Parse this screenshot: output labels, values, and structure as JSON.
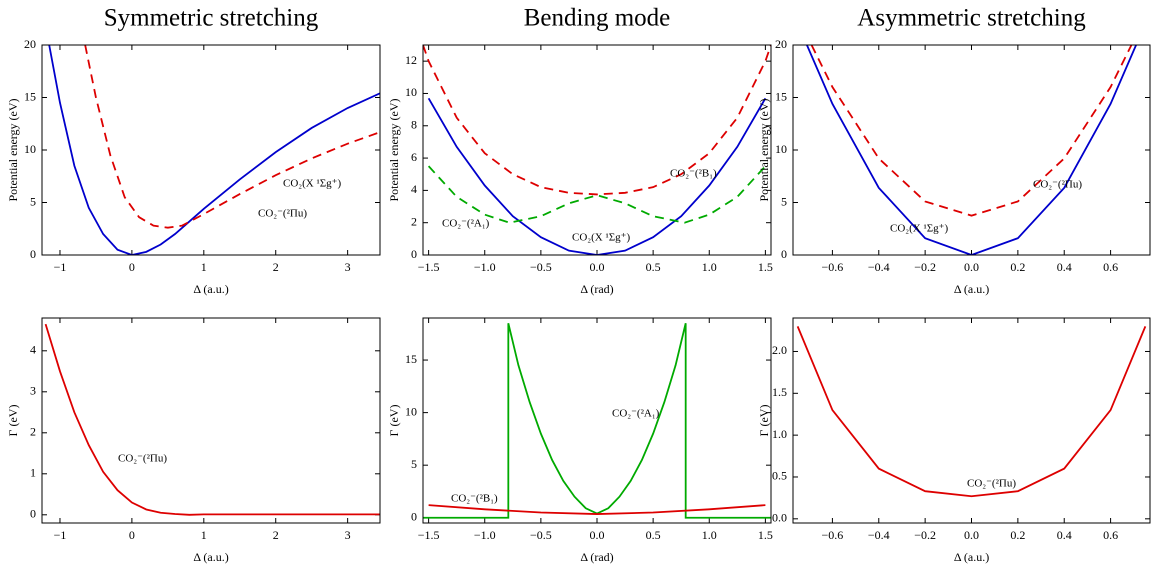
{
  "chart_data": [
    {
      "type": "line",
      "title": "Symmetric stretching",
      "xlabel": "Δ (a.u.)",
      "ylabel": "Potential energy (eV)",
      "xlim": [
        -1.25,
        3.45
      ],
      "ylim": [
        0,
        20
      ],
      "xticks": [
        {
          "value": -1,
          "label": "−1"
        },
        0,
        1,
        2,
        3
      ],
      "yticks": [
        0,
        5,
        10,
        15,
        20
      ],
      "series": [
        {
          "color": "#0000cc",
          "linestyle": "solid",
          "x": [
            -1.15,
            -1.0,
            -0.8,
            -0.6,
            -0.4,
            -0.2,
            0,
            0.2,
            0.4,
            0.6,
            0.8,
            1.0,
            1.5,
            2.0,
            2.5,
            3.0,
            3.45
          ],
          "values": [
            20,
            14.5,
            8.5,
            4.5,
            2,
            0.5,
            0,
            0.3,
            1.0,
            2.0,
            3.2,
            4.4,
            7.2,
            9.8,
            12.1,
            14.0,
            15.4
          ]
        },
        {
          "color": "#dd0000",
          "linestyle": "dashed",
          "x": [
            -0.65,
            -0.5,
            -0.3,
            -0.1,
            0.1,
            0.3,
            0.5,
            0.7,
            1.0,
            1.5,
            2.0,
            2.5,
            3.0,
            3.45
          ],
          "values": [
            20,
            15,
            9.5,
            5.5,
            3.6,
            2.8,
            2.6,
            2.8,
            3.9,
            5.8,
            7.6,
            9.2,
            10.6,
            11.7
          ]
        }
      ],
      "annotations": [
        "CO₂(X ¹Σg⁺)",
        "CO₂⁻(²Πu)"
      ]
    },
    {
      "type": "line",
      "title": "Bending mode",
      "xlabel": "Δ (rad)",
      "ylabel": "Potential energy (eV)",
      "xlim": [
        -1.55,
        1.55
      ],
      "ylim": [
        0,
        13
      ],
      "xticks": [
        {
          "value": -1.5,
          "label": "−1.5"
        },
        {
          "value": -1.0,
          "label": "−1.0"
        },
        {
          "value": -0.5,
          "label": "−0.5"
        },
        {
          "value": 0,
          "label": "0.0"
        },
        0.5,
        {
          "value": 1,
          "label": "1.0"
        },
        1.5
      ],
      "yticks": [
        0,
        2,
        4,
        6,
        8,
        10,
        12
      ],
      "series": [
        {
          "color": "#0000cc",
          "linestyle": "solid",
          "x": [
            -1.5,
            -1.25,
            -1.0,
            -0.75,
            -0.5,
            -0.25,
            0,
            0.25,
            0.5,
            0.75,
            1.0,
            1.25,
            1.5
          ],
          "values": [
            9.7,
            6.7,
            4.3,
            2.4,
            1.1,
            0.27,
            0,
            0.27,
            1.1,
            2.4,
            4.3,
            6.7,
            9.7
          ]
        },
        {
          "color": "#dd0000",
          "linestyle": "dashed",
          "x": [
            -1.55,
            -1.5,
            -1.25,
            -1.0,
            -0.75,
            -0.5,
            -0.25,
            0,
            0.25,
            0.5,
            0.75,
            1.0,
            1.25,
            1.5,
            1.55
          ],
          "values": [
            13,
            12.0,
            8.5,
            6.3,
            5.0,
            4.2,
            3.85,
            3.75,
            3.85,
            4.2,
            5.0,
            6.3,
            8.5,
            12.0,
            13
          ]
        },
        {
          "color": "#00aa00",
          "linestyle": "dashed",
          "x": [
            -1.5,
            -1.25,
            -1.0,
            -0.78,
            -0.5,
            -0.25,
            0,
            0.25,
            0.5,
            0.78,
            1.0,
            1.25,
            1.5
          ],
          "values": [
            5.5,
            3.6,
            2.5,
            2.0,
            2.4,
            3.2,
            3.7,
            3.2,
            2.4,
            2.0,
            2.5,
            3.6,
            5.5
          ]
        }
      ],
      "annotations": [
        "CO₂⁻(²B₁)",
        "CO₂⁻(²A₁)",
        "CO₂(X ¹Σg⁺)"
      ]
    },
    {
      "type": "line",
      "title": "Asymmetric stretching",
      "xlabel": "Δ (a.u.)",
      "ylabel": "Potential energy (eV)",
      "xlim": [
        -0.77,
        0.77
      ],
      "ylim": [
        0,
        20
      ],
      "xticks": [
        {
          "value": -0.6,
          "label": "−0.6"
        },
        {
          "value": -0.4,
          "label": "−0.4"
        },
        {
          "value": -0.2,
          "label": "−0.2"
        },
        {
          "value": 0,
          "label": "0.0"
        },
        0.2,
        0.4,
        0.6
      ],
      "yticks": [
        0,
        5,
        10,
        15,
        20
      ],
      "series": [
        {
          "color": "#0000cc",
          "linestyle": "solid",
          "x": [
            -0.71,
            -0.6,
            -0.4,
            -0.2,
            0,
            0.2,
            0.4,
            0.6,
            0.71
          ],
          "values": [
            20,
            14.4,
            6.4,
            1.6,
            0,
            1.6,
            6.4,
            14.4,
            20
          ]
        },
        {
          "color": "#dd0000",
          "linestyle": "dashed",
          "x": [
            -0.69,
            -0.6,
            -0.4,
            -0.2,
            0,
            0.2,
            0.4,
            0.6,
            0.69
          ],
          "values": [
            20,
            16,
            9.2,
            5.1,
            3.75,
            5.1,
            9.2,
            16,
            20
          ]
        }
      ],
      "annotations": [
        "CO₂⁻(²Πu)",
        "CO₂(X ¹Σg⁺)"
      ]
    },
    {
      "type": "line",
      "xlabel": "Δ (a.u.)",
      "ylabel": "Γ (eV)",
      "xlim": [
        -1.25,
        3.45
      ],
      "ylim": [
        -0.2,
        4.8
      ],
      "xticks": [
        {
          "value": -1,
          "label": "−1"
        },
        0,
        1,
        2,
        3
      ],
      "yticks": [
        0,
        1,
        2,
        3,
        4
      ],
      "series": [
        {
          "color": "#dd0000",
          "linestyle": "solid",
          "x": [
            -1.2,
            -1.0,
            -0.8,
            -0.6,
            -0.4,
            -0.2,
            0,
            0.2,
            0.4,
            0.6,
            0.8,
            1.0,
            3.45
          ],
          "values": [
            4.65,
            3.5,
            2.5,
            1.7,
            1.05,
            0.6,
            0.3,
            0.13,
            0.05,
            0.02,
            0,
            0.01,
            0.01
          ]
        }
      ],
      "annotations": [
        "CO₂⁻(²Πu)"
      ]
    },
    {
      "type": "line",
      "xlabel": "Δ (rad)",
      "ylabel": "Γ (eV)",
      "xlim": [
        -1.55,
        1.55
      ],
      "ylim": [
        -0.5,
        19
      ],
      "xticks": [
        {
          "value": -1.5,
          "label": "−1.5"
        },
        {
          "value": -1.0,
          "label": "−1.0"
        },
        {
          "value": -0.5,
          "label": "−0.5"
        },
        {
          "value": 0,
          "label": "0.0"
        },
        0.5,
        {
          "value": 1,
          "label": "1.0"
        },
        1.5
      ],
      "yticks": [
        0,
        5,
        10,
        15
      ],
      "series": [
        {
          "color": "#00aa00",
          "linestyle": "solid",
          "x": [
            -1.55,
            -0.79,
            -0.79,
            -0.7,
            -0.6,
            -0.5,
            -0.4,
            -0.3,
            -0.2,
            -0.1,
            0,
            0.1,
            0.2,
            0.3,
            0.4,
            0.5,
            0.6,
            0.7,
            0.79,
            0.79,
            1.55
          ],
          "values": [
            0,
            0,
            18.5,
            14.5,
            11,
            8,
            5.5,
            3.5,
            2,
            0.9,
            0.4,
            0.9,
            2,
            3.5,
            5.5,
            8,
            11,
            14.5,
            18.5,
            0,
            0
          ]
        },
        {
          "color": "#dd0000",
          "linestyle": "solid",
          "x": [
            -1.5,
            -1.0,
            -0.5,
            0,
            0.5,
            1.0,
            1.5
          ],
          "values": [
            1.2,
            0.8,
            0.5,
            0.35,
            0.5,
            0.8,
            1.2
          ]
        }
      ],
      "annotations": [
        "CO₂⁻(²B₁)",
        "CO₂⁻(²A₁)"
      ]
    },
    {
      "type": "line",
      "xlabel": "Δ (a.u.)",
      "ylabel": "Γ (eV)",
      "xlim": [
        -0.77,
        0.77
      ],
      "ylim": [
        -0.05,
        2.4
      ],
      "xticks": [
        {
          "value": -0.6,
          "label": "−0.6"
        },
        {
          "value": -0.4,
          "label": "−0.4"
        },
        {
          "value": -0.2,
          "label": "−0.2"
        },
        {
          "value": 0,
          "label": "0.0"
        },
        0.2,
        0.4,
        0.6
      ],
      "yticks": [
        {
          "value": 0,
          "label": "0.0"
        },
        0.5,
        {
          "value": 1,
          "label": "1.0"
        },
        1.5,
        {
          "value": 2,
          "label": "2.0"
        }
      ],
      "series": [
        {
          "color": "#dd0000",
          "linestyle": "solid",
          "x": [
            -0.75,
            -0.6,
            -0.4,
            -0.2,
            0,
            0.2,
            0.4,
            0.6,
            0.75
          ],
          "values": [
            2.3,
            1.3,
            0.6,
            0.33,
            0.27,
            0.33,
            0.6,
            1.3,
            2.3
          ]
        }
      ],
      "annotations": [
        "CO₂⁻(²Πu)"
      ]
    }
  ]
}
